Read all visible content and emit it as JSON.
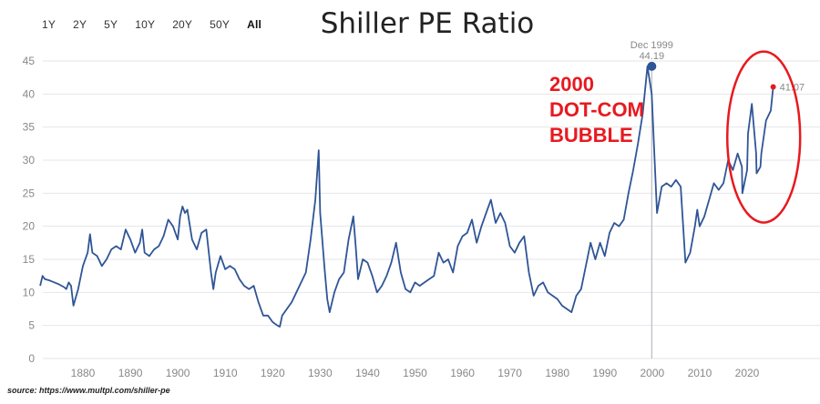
{
  "range_tabs": {
    "items": [
      "1Y",
      "2Y",
      "5Y",
      "10Y",
      "20Y",
      "50Y",
      "All"
    ],
    "active": "All"
  },
  "source_note": "source: https://www.multpl.com/shiller-pe",
  "colors": {
    "line": "#2f5597",
    "accent": "#e8191f",
    "grid": "#e6e6e6",
    "axis_text": "#888888"
  },
  "chart_data": {
    "type": "line",
    "title": "Shiller PE Ratio",
    "xlabel": "",
    "ylabel": "",
    "xlim": [
      1871,
      2026
    ],
    "ylim": [
      0,
      45
    ],
    "x_ticks": [
      1880,
      1890,
      1900,
      1910,
      1920,
      1930,
      1940,
      1950,
      1960,
      1970,
      1980,
      1990,
      2000,
      2010,
      2020
    ],
    "y_ticks": [
      0,
      5,
      10,
      15,
      20,
      25,
      30,
      35,
      40,
      45
    ],
    "grid": "horizontal",
    "series": [
      {
        "x": [
          1871,
          1871.5,
          1872,
          1873,
          1874,
          1875,
          1876,
          1876.5,
          1877,
          1877.5,
          1878,
          1879,
          1880,
          1881,
          1881.5,
          1882,
          1883,
          1884,
          1885,
          1886,
          1887,
          1888,
          1889,
          1890,
          1891,
          1892,
          1892.5,
          1893,
          1894,
          1895,
          1896,
          1897,
          1898,
          1899,
          1900,
          1900.5,
          1901,
          1901.5,
          1902,
          1903,
          1904,
          1905,
          1906,
          1907,
          1907.5,
          1908,
          1909,
          1910,
          1911,
          1912,
          1913,
          1914,
          1915,
          1916,
          1917,
          1918,
          1919,
          1920,
          1921,
          1921.5,
          1922,
          1923,
          1924,
          1925,
          1926,
          1927,
          1928,
          1929,
          1929.7,
          1930,
          1931,
          1931.5,
          1932,
          1933,
          1934,
          1935,
          1936,
          1937,
          1937.5,
          1938,
          1939,
          1940,
          1941,
          1942,
          1943,
          1944,
          1945,
          1946,
          1947,
          1948,
          1949,
          1950,
          1951,
          1952,
          1953,
          1954,
          1955,
          1956,
          1957,
          1958,
          1959,
          1960,
          1961,
          1962,
          1963,
          1964,
          1965,
          1966,
          1967,
          1968,
          1969,
          1970,
          1971,
          1972,
          1973,
          1974,
          1975,
          1976,
          1977,
          1978,
          1979,
          1980,
          1981,
          1982,
          1983,
          1984,
          1985,
          1986,
          1987,
          1988,
          1989,
          1990,
          1991,
          1992,
          1993,
          1994,
          1995,
          1996,
          1997,
          1998,
          1999,
          1999.9,
          2000.5,
          2001,
          2002,
          2003,
          2004,
          2005,
          2006,
          2007,
          2008,
          2009,
          2009.5,
          2010,
          2011,
          2012,
          2013,
          2014,
          2015,
          2016,
          2017,
          2018,
          2018.9,
          2019,
          2020,
          2020.2,
          2021,
          2021.9,
          2022,
          2022.8,
          2023,
          2024,
          2025,
          2025.5
        ],
        "values": [
          11.0,
          12.5,
          12.0,
          11.8,
          11.5,
          11.2,
          10.8,
          10.5,
          11.5,
          11.0,
          8.0,
          10.5,
          14.0,
          16.0,
          18.8,
          16.0,
          15.5,
          14.0,
          15.0,
          16.5,
          17.0,
          16.5,
          19.5,
          18.0,
          16.0,
          17.5,
          19.5,
          16.0,
          15.5,
          16.5,
          17.0,
          18.5,
          21.0,
          20.0,
          18.0,
          21.5,
          23.0,
          22.0,
          22.5,
          18.0,
          16.5,
          19.0,
          19.5,
          13.0,
          10.5,
          13.0,
          15.5,
          13.5,
          14.0,
          13.5,
          12.0,
          11.0,
          10.5,
          11.0,
          8.5,
          6.5,
          6.5,
          5.5,
          5.0,
          4.8,
          6.5,
          7.5,
          8.5,
          10.0,
          11.5,
          13.0,
          18.0,
          24.0,
          31.5,
          22.0,
          13.0,
          9.0,
          7.0,
          10.0,
          12.0,
          13.0,
          18.0,
          21.5,
          17.0,
          12.0,
          15.0,
          14.5,
          12.5,
          10.0,
          11.0,
          12.5,
          14.5,
          17.5,
          13.0,
          10.5,
          10.0,
          11.5,
          11.0,
          11.5,
          12.0,
          12.5,
          16.0,
          14.5,
          15.0,
          13.0,
          17.0,
          18.5,
          19.0,
          21.0,
          17.5,
          20.0,
          22.0,
          24.0,
          20.5,
          22.0,
          20.5,
          17.0,
          16.0,
          17.5,
          18.5,
          13.0,
          9.5,
          11.0,
          11.5,
          10.0,
          9.5,
          9.0,
          8.0,
          7.5,
          7.0,
          9.5,
          10.5,
          14.0,
          17.5,
          15.0,
          17.5,
          15.5,
          19.0,
          20.5,
          20.0,
          21.0,
          25.0,
          28.5,
          32.5,
          37.0,
          44.19,
          40.0,
          30.0,
          22.0,
          26.0,
          26.5,
          26.0,
          27.0,
          26.0,
          14.5,
          16.0,
          20.0,
          22.5,
          20.0,
          21.5,
          24.0,
          26.5,
          25.5,
          26.5,
          30.0,
          28.5,
          31.0,
          29.0,
          25.0,
          28.5,
          34.0,
          38.5,
          31.0,
          28.0,
          29.0,
          31.0,
          36.0,
          37.5,
          41.07
        ]
      }
    ],
    "annotations": [
      {
        "x": 1999.9,
        "y": 44.19,
        "date_label": "Dec 1999",
        "value_label": "44.19",
        "type": "peak-marker"
      },
      {
        "x": 2025.5,
        "y": 41.07,
        "value_label": "41.07",
        "type": "last-value"
      },
      {
        "text_lines": [
          "2000",
          "DOT-COM",
          "BUBBLE"
        ],
        "x": 1978,
        "y": 44.0,
        "color": "#e8191f",
        "type": "callout-text"
      },
      {
        "type": "ellipse-highlight",
        "x_center": 2023.5,
        "y_center": 33.5,
        "color": "#e8191f"
      }
    ]
  }
}
